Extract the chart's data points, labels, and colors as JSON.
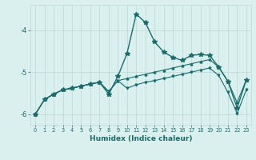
{
  "xlabel": "Humidex (Indice chaleur)",
  "bg_color": "#daf0ef",
  "grid_color": "#b8d8d8",
  "line_color": "#1a6b6b",
  "xlim": [
    -0.5,
    23.5
  ],
  "ylim": [
    -6.25,
    -3.4
  ],
  "yticks": [
    -6,
    -5,
    -4
  ],
  "xticks": [
    0,
    1,
    2,
    3,
    4,
    5,
    6,
    7,
    8,
    9,
    10,
    11,
    12,
    13,
    14,
    15,
    16,
    17,
    18,
    19,
    20,
    21,
    22,
    23
  ],
  "series1": {
    "x": [
      0,
      1,
      2,
      3,
      4,
      5,
      6,
      7,
      8,
      9,
      10,
      11,
      12,
      13,
      14,
      15,
      16,
      17,
      18,
      19,
      20,
      21,
      22,
      23
    ],
    "y": [
      -6.0,
      -5.65,
      -5.52,
      -5.42,
      -5.38,
      -5.33,
      -5.28,
      -5.24,
      -5.52,
      -5.1,
      -4.55,
      -3.62,
      -3.82,
      -4.28,
      -4.52,
      -4.65,
      -4.72,
      -4.6,
      -4.58,
      -4.6,
      -4.88,
      -5.22,
      -5.85,
      -5.18
    ]
  },
  "series2": {
    "x": [
      0,
      1,
      2,
      3,
      4,
      5,
      6,
      7,
      8,
      9,
      10,
      11,
      12,
      13,
      14,
      15,
      16,
      17,
      18,
      19,
      20,
      21,
      22,
      23
    ],
    "y": [
      -6.0,
      -5.65,
      -5.52,
      -5.42,
      -5.38,
      -5.33,
      -5.28,
      -5.24,
      -5.46,
      -5.2,
      -5.15,
      -5.1,
      -5.05,
      -5.0,
      -4.95,
      -4.9,
      -4.85,
      -4.8,
      -4.75,
      -4.7,
      -4.88,
      -5.22,
      -5.72,
      -5.18
    ]
  },
  "series3": {
    "x": [
      0,
      1,
      2,
      3,
      4,
      5,
      6,
      7,
      8,
      9,
      10,
      11,
      12,
      13,
      14,
      15,
      16,
      17,
      18,
      19,
      20,
      21,
      22,
      23
    ],
    "y": [
      -6.0,
      -5.65,
      -5.52,
      -5.42,
      -5.38,
      -5.33,
      -5.28,
      -5.24,
      -5.46,
      -5.2,
      -5.38,
      -5.3,
      -5.24,
      -5.2,
      -5.15,
      -5.1,
      -5.05,
      -5.0,
      -4.95,
      -4.9,
      -5.08,
      -5.48,
      -5.98,
      -5.42
    ]
  }
}
